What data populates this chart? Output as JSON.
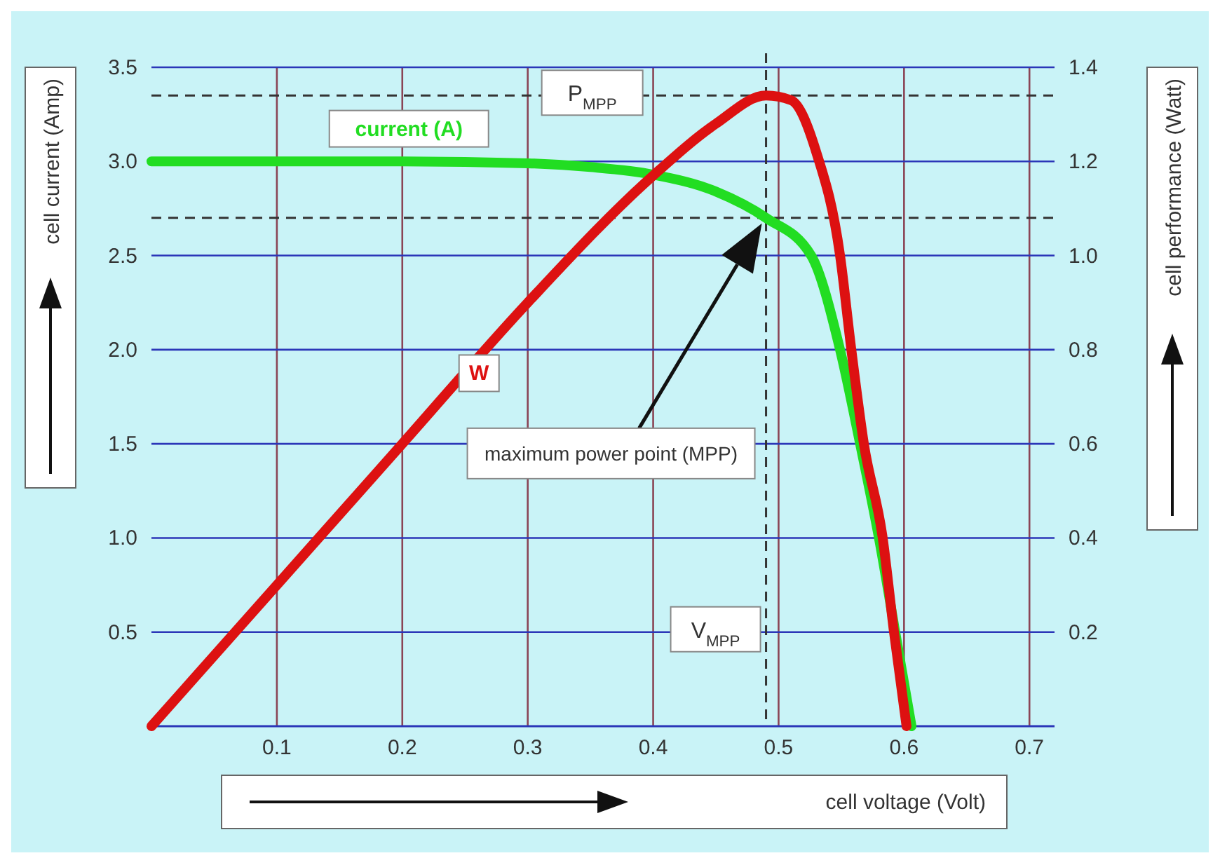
{
  "chart_data": {
    "type": "line",
    "xlabel": "cell voltage (Volt)",
    "ylabel": "cell current (Amp)",
    "y2label": "cell performance (Watt)",
    "xlim": [
      0,
      0.72
    ],
    "xticks": [
      0.1,
      0.2,
      0.3,
      0.4,
      0.5,
      0.6,
      0.7
    ],
    "ylim": [
      0,
      3.5
    ],
    "yticks": [
      0.5,
      {
        "value": 1,
        "label": "1.0"
      },
      1.5,
      {
        "value": 2,
        "label": "2.0"
      },
      2.5,
      {
        "value": 3,
        "label": "3.0"
      },
      3.5
    ],
    "y2lim": [
      0,
      1.4
    ],
    "y2ticks": [
      0.2,
      0.4,
      0.6,
      0.8,
      {
        "value": 1,
        "label": "1.0"
      },
      1.2,
      1.4
    ],
    "grid": true,
    "line_style": "solid",
    "marker": "none",
    "series": [
      {
        "name": "current (A)",
        "color": "#22dd22",
        "x": [
          0,
          0.1,
          0.2,
          0.3,
          0.35,
          0.4,
          0.45,
          0.49,
          0.526,
          0.549,
          0.565,
          0.58,
          0.593,
          0.606
        ],
        "values": [
          3.0,
          3.0,
          3.0,
          2.99,
          2.97,
          2.93,
          2.84,
          2.7,
          2.5,
          2.0,
          1.5,
          1.0,
          0.5,
          0
        ]
      },
      {
        "name": "W",
        "color": "#dd1111",
        "axis": "y2",
        "x": [
          0,
          0.1,
          0.2,
          0.3,
          0.4,
          0.45,
          0.49,
          0.51,
          0.53,
          0.549,
          0.558,
          0.568,
          0.583,
          0.592,
          0.602
        ],
        "values": [
          0,
          0.3,
          0.6,
          0.9,
          1.17,
          1.28,
          1.34,
          1.33,
          1.22,
          1.0,
          0.8,
          0.6,
          0.4,
          0.2,
          0
        ]
      }
    ],
    "ref_lines": [
      {
        "axis": "y2",
        "value": 1.34,
        "label": "P$_{MPP}$",
        "line_style": "dashed",
        "color": "#333333"
      },
      {
        "axis": "y",
        "value": 2.7,
        "line_style": "dashed",
        "color": "#333333"
      },
      {
        "axis": "x",
        "value": 0.49,
        "label": "V$_{MPP}$",
        "line_style": "dashed",
        "color": "#333333"
      }
    ],
    "annotations": [
      "maximum power point (MPP)"
    ]
  }
}
